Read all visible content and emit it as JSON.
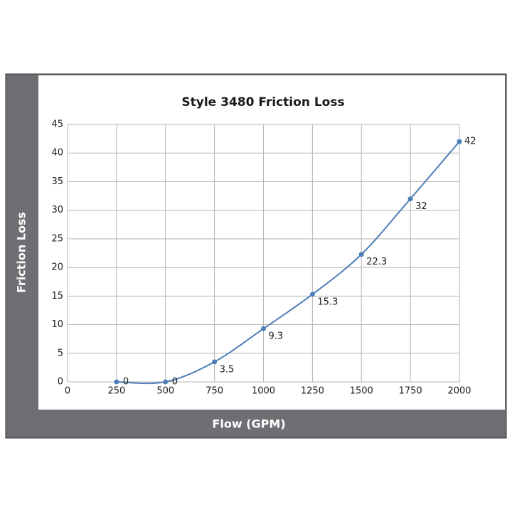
{
  "chart_data": {
    "type": "line",
    "title": "Style 3480 Friction Loss",
    "x_label": "Flow (GPM)",
    "y_label": "Friction Loss",
    "x": [
      250,
      500,
      750,
      1000,
      1250,
      1500,
      1750,
      2000
    ],
    "series": [
      {
        "name": "Friction Loss",
        "color": "#4f7fba",
        "values": [
          0,
          0,
          3.5,
          9.3,
          15.3,
          22.3,
          32,
          42
        ]
      }
    ],
    "xlim": [
      0,
      2000
    ],
    "xticks": [
      0,
      250,
      500,
      750,
      1000,
      1250,
      1500,
      1750,
      2000
    ],
    "ylim": [
      0,
      45
    ],
    "yticks": [
      0,
      5,
      10,
      15,
      20,
      25,
      30,
      35,
      40,
      45
    ],
    "grid": true
  }
}
